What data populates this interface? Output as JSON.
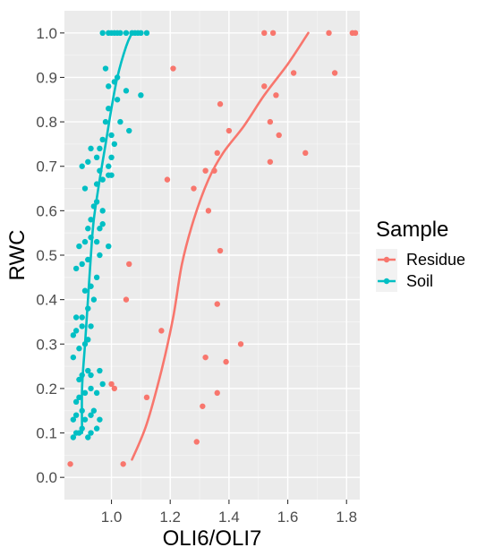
{
  "chart_data": {
    "type": "scatter",
    "xlabel": "OLI6/OLI7",
    "ylabel": "RWC",
    "xlim": [
      0.84,
      1.845
    ],
    "ylim": [
      -0.05,
      1.05
    ],
    "x_ticks": [
      1.0,
      1.2,
      1.4,
      1.6,
      1.8
    ],
    "x_tick_labels": [
      "1.0",
      "1.2",
      "1.4",
      "1.6",
      "1.8"
    ],
    "y_ticks": [
      0.0,
      0.1,
      0.2,
      0.3,
      0.4,
      0.5,
      0.6,
      0.7,
      0.8,
      0.9,
      1.0
    ],
    "y_tick_labels": [
      "0.0",
      "0.1",
      "0.2",
      "0.3",
      "0.4",
      "0.5",
      "0.6",
      "0.7",
      "0.8",
      "0.9",
      "1.0"
    ],
    "grid": true,
    "background": "#ebebeb",
    "legend": {
      "title": "Sample",
      "placement": "right",
      "entries": [
        "Residue",
        "Soil"
      ]
    },
    "series": [
      {
        "name": "Residue",
        "color": "#f8766d",
        "points": [
          [
            0.86,
            0.03
          ],
          [
            1.04,
            0.03
          ],
          [
            1.29,
            0.08
          ],
          [
            1.31,
            0.16
          ],
          [
            1.36,
            0.19
          ],
          [
            1.12,
            0.18
          ],
          [
            1.01,
            0.2
          ],
          [
            1.0,
            0.21
          ],
          [
            1.39,
            0.26
          ],
          [
            1.32,
            0.27
          ],
          [
            1.44,
            0.3
          ],
          [
            1.17,
            0.33
          ],
          [
            1.36,
            0.39
          ],
          [
            1.05,
            0.4
          ],
          [
            1.06,
            0.48
          ],
          [
            1.37,
            0.51
          ],
          [
            1.33,
            0.6
          ],
          [
            1.19,
            0.67
          ],
          [
            1.28,
            0.65
          ],
          [
            1.32,
            0.69
          ],
          [
            1.35,
            0.69
          ],
          [
            1.36,
            0.73
          ],
          [
            1.54,
            0.71
          ],
          [
            1.66,
            0.73
          ],
          [
            1.4,
            0.78
          ],
          [
            1.57,
            0.77
          ],
          [
            1.54,
            0.8
          ],
          [
            1.37,
            0.84
          ],
          [
            1.56,
            0.86
          ],
          [
            1.52,
            0.88
          ],
          [
            1.62,
            0.91
          ],
          [
            1.76,
            0.91
          ],
          [
            1.21,
            0.92
          ],
          [
            1.52,
            1.0
          ],
          [
            1.55,
            1.0
          ],
          [
            1.74,
            1.0
          ],
          [
            1.82,
            1.0
          ],
          [
            1.83,
            1.0
          ]
        ],
        "trend": [
          [
            1.07,
            0.04
          ],
          [
            1.12,
            0.12
          ],
          [
            1.17,
            0.24
          ],
          [
            1.21,
            0.36
          ],
          [
            1.24,
            0.48
          ],
          [
            1.28,
            0.58
          ],
          [
            1.33,
            0.67
          ],
          [
            1.38,
            0.73
          ],
          [
            1.45,
            0.79
          ],
          [
            1.52,
            0.86
          ],
          [
            1.6,
            0.93
          ],
          [
            1.67,
            1.0
          ]
        ]
      },
      {
        "name": "Soil",
        "color": "#00bfc4",
        "points": [
          [
            0.87,
            0.09
          ],
          [
            0.88,
            0.1
          ],
          [
            0.89,
            0.1
          ],
          [
            0.9,
            0.11
          ],
          [
            0.92,
            0.09
          ],
          [
            0.93,
            0.1
          ],
          [
            0.95,
            0.11
          ],
          [
            0.87,
            0.13
          ],
          [
            0.88,
            0.14
          ],
          [
            0.9,
            0.15
          ],
          [
            0.91,
            0.13
          ],
          [
            0.93,
            0.14
          ],
          [
            0.94,
            0.15
          ],
          [
            0.96,
            0.13
          ],
          [
            0.88,
            0.17
          ],
          [
            0.89,
            0.18
          ],
          [
            0.91,
            0.19
          ],
          [
            0.93,
            0.2
          ],
          [
            0.95,
            0.19
          ],
          [
            0.97,
            0.21
          ],
          [
            0.89,
            0.22
          ],
          [
            0.9,
            0.23
          ],
          [
            0.92,
            0.24
          ],
          [
            0.93,
            0.23
          ],
          [
            0.96,
            0.24
          ],
          [
            0.87,
            0.27
          ],
          [
            0.89,
            0.29
          ],
          [
            0.91,
            0.3
          ],
          [
            0.92,
            0.31
          ],
          [
            0.87,
            0.32
          ],
          [
            0.88,
            0.33
          ],
          [
            0.9,
            0.34
          ],
          [
            0.93,
            0.34
          ],
          [
            0.88,
            0.36
          ],
          [
            0.9,
            0.36
          ],
          [
            0.92,
            0.38
          ],
          [
            0.94,
            0.4
          ],
          [
            0.91,
            0.42
          ],
          [
            0.93,
            0.43
          ],
          [
            0.95,
            0.45
          ],
          [
            0.88,
            0.47
          ],
          [
            0.9,
            0.48
          ],
          [
            0.92,
            0.49
          ],
          [
            0.96,
            0.5
          ],
          [
            0.89,
            0.52
          ],
          [
            0.91,
            0.53
          ],
          [
            0.93,
            0.54
          ],
          [
            0.95,
            0.53
          ],
          [
            0.92,
            0.56
          ],
          [
            0.93,
            0.58
          ],
          [
            0.96,
            0.56
          ],
          [
            0.97,
            0.57
          ],
          [
            0.99,
            0.52
          ],
          [
            0.94,
            0.61
          ],
          [
            0.95,
            0.62
          ],
          [
            0.97,
            0.6
          ],
          [
            0.91,
            0.65
          ],
          [
            0.95,
            0.66
          ],
          [
            0.97,
            0.67
          ],
          [
            0.99,
            0.68
          ],
          [
            0.96,
            0.69
          ],
          [
            0.99,
            0.7
          ],
          [
            1.0,
            0.68
          ],
          [
            0.9,
            0.7
          ],
          [
            0.92,
            0.71
          ],
          [
            0.95,
            0.72
          ],
          [
            0.93,
            0.74
          ],
          [
            0.96,
            0.74
          ],
          [
            1.0,
            0.72
          ],
          [
            0.97,
            0.76
          ],
          [
            1.01,
            0.75
          ],
          [
            1.0,
            0.77
          ],
          [
            0.98,
            0.8
          ],
          [
            1.03,
            0.8
          ],
          [
            1.06,
            0.78
          ],
          [
            0.99,
            0.83
          ],
          [
            1.02,
            0.85
          ],
          [
            1.05,
            0.87
          ],
          [
            0.99,
            0.88
          ],
          [
            1.01,
            0.89
          ],
          [
            1.02,
            0.9
          ],
          [
            1.1,
            0.86
          ],
          [
            0.98,
            0.92
          ],
          [
            0.97,
            1.0
          ],
          [
            0.99,
            1.0
          ],
          [
            1.0,
            1.0
          ],
          [
            1.01,
            1.0
          ],
          [
            1.02,
            1.0
          ],
          [
            1.03,
            1.0
          ],
          [
            1.05,
            1.0
          ],
          [
            1.07,
            1.0
          ],
          [
            1.08,
            1.0
          ],
          [
            1.09,
            1.0
          ],
          [
            1.1,
            1.0
          ],
          [
            1.12,
            1.0
          ]
        ],
        "trend": [
          [
            0.9,
            0.1
          ],
          [
            0.9,
            0.2
          ],
          [
            0.91,
            0.3
          ],
          [
            0.92,
            0.4
          ],
          [
            0.93,
            0.5
          ],
          [
            0.94,
            0.58
          ],
          [
            0.96,
            0.67
          ],
          [
            0.98,
            0.75
          ],
          [
            1.0,
            0.83
          ],
          [
            1.02,
            0.9
          ],
          [
            1.05,
            0.97
          ],
          [
            1.07,
            1.0
          ]
        ]
      }
    ]
  }
}
